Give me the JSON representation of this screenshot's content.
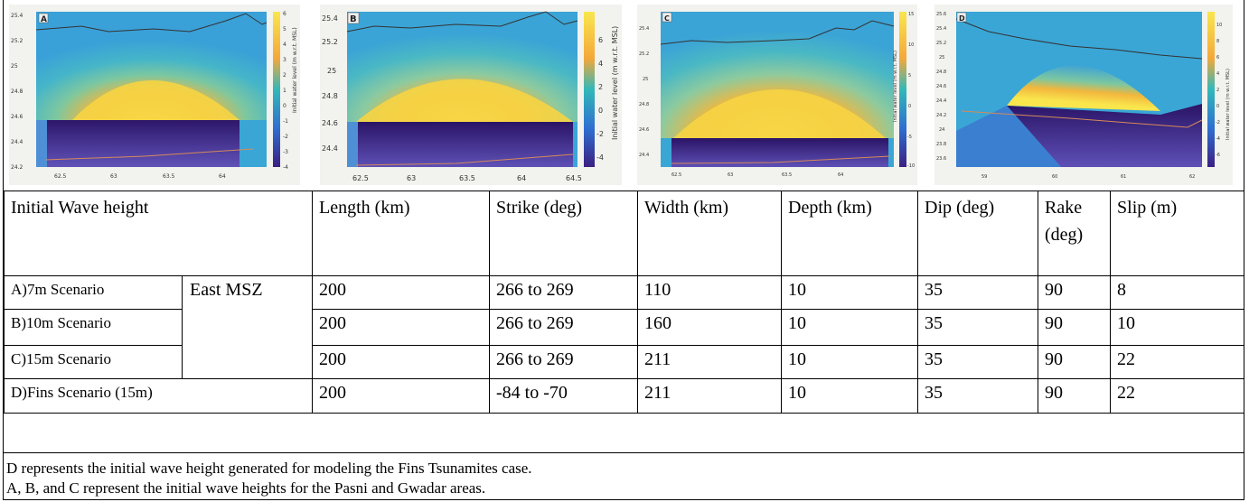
{
  "figure": {
    "panels": [
      {
        "letter": "A",
        "y_ticks": [
          "25.4",
          "25.2",
          "25",
          "24.8",
          "24.6",
          "24.4",
          "24.2"
        ],
        "x_ticks": [
          "62.5",
          "63",
          "63.5",
          "64"
        ],
        "cbar_ticks": [
          "6",
          "5",
          "4",
          "3",
          "2",
          "1",
          "0",
          "-1",
          "-2",
          "-3",
          "-4"
        ],
        "cbar_label": "Initial water level (m w.r.t. MSL)"
      },
      {
        "letter": "B",
        "y_ticks": [
          "25.4",
          "25.2",
          "25",
          "24.8",
          "24.6",
          "24.4"
        ],
        "x_ticks": [
          "62.5",
          "63",
          "63.5",
          "64",
          "64.5"
        ],
        "cbar_ticks": [
          "6",
          "4",
          "2",
          "0",
          "-2",
          "-4"
        ],
        "cbar_label": "Initial water level (m w.r.t. MSL)"
      },
      {
        "letter": "C",
        "y_ticks": [
          "25.4",
          "25.2",
          "25",
          "24.8",
          "24.6",
          "24.4"
        ],
        "x_ticks": [
          "62.5",
          "63",
          "63.5",
          "64"
        ],
        "cbar_ticks": [
          "15",
          "10",
          "5",
          "0",
          "-5",
          "-10"
        ],
        "cbar_label": "Initial water level (m w.r.t. MSL)"
      },
      {
        "letter": "D",
        "y_ticks": [
          "25.6",
          "25.4",
          "25.2",
          "25",
          "24.8",
          "24.6",
          "24.4",
          "24.2",
          "24",
          "23.8",
          "23.6"
        ],
        "x_ticks": [
          "59",
          "60",
          "61",
          "62"
        ],
        "cbar_ticks": [
          "10",
          "8",
          "6",
          "4",
          "2",
          "0",
          "-2",
          "-4",
          "-6"
        ],
        "cbar_label": "Initial water level (m w.r.t. MSL)"
      }
    ],
    "colors": {
      "high": "#f7e44a",
      "mid": "#33b8b8",
      "low": "#3b1f82"
    }
  },
  "table": {
    "headers": {
      "wave": "Initial Wave height",
      "length": "Length (km)",
      "strike": "Strike (deg)",
      "width": "Width (km)",
      "depth": "Depth (km)",
      "dip": "Dip (deg)",
      "rake": "Rake (deg)",
      "slip": "Slip (m)"
    },
    "region": "East MSZ",
    "rows": [
      {
        "scenario": "A)7m Scenario",
        "length": "200",
        "strike": "266 to 269",
        "width": "110",
        "depth": "10",
        "dip": "35",
        "rake": "90",
        "slip": "8"
      },
      {
        "scenario": "B)10m Scenario",
        "length": "200",
        "strike": "266 to 269",
        "width": "160",
        "depth": "10",
        "dip": "35",
        "rake": "90",
        "slip": "10"
      },
      {
        "scenario": "C)15m Scenario",
        "length": "200",
        "strike": "266 to 269",
        "width": "211",
        "depth": "10",
        "dip": "35",
        "rake": "90",
        "slip": "22"
      },
      {
        "scenario": "D)Fins Scenario (15m)",
        "length": "200",
        "strike": "-84 to -70",
        "width": "211",
        "depth": "10",
        "dip": "35",
        "rake": "90",
        "slip": "22"
      }
    ]
  },
  "notes": [
    "D represents the initial wave height generated for modeling the Fins Tsunamites case.",
    "A, B, and C represent the initial wave heights for the Pasni and Gwadar areas."
  ]
}
